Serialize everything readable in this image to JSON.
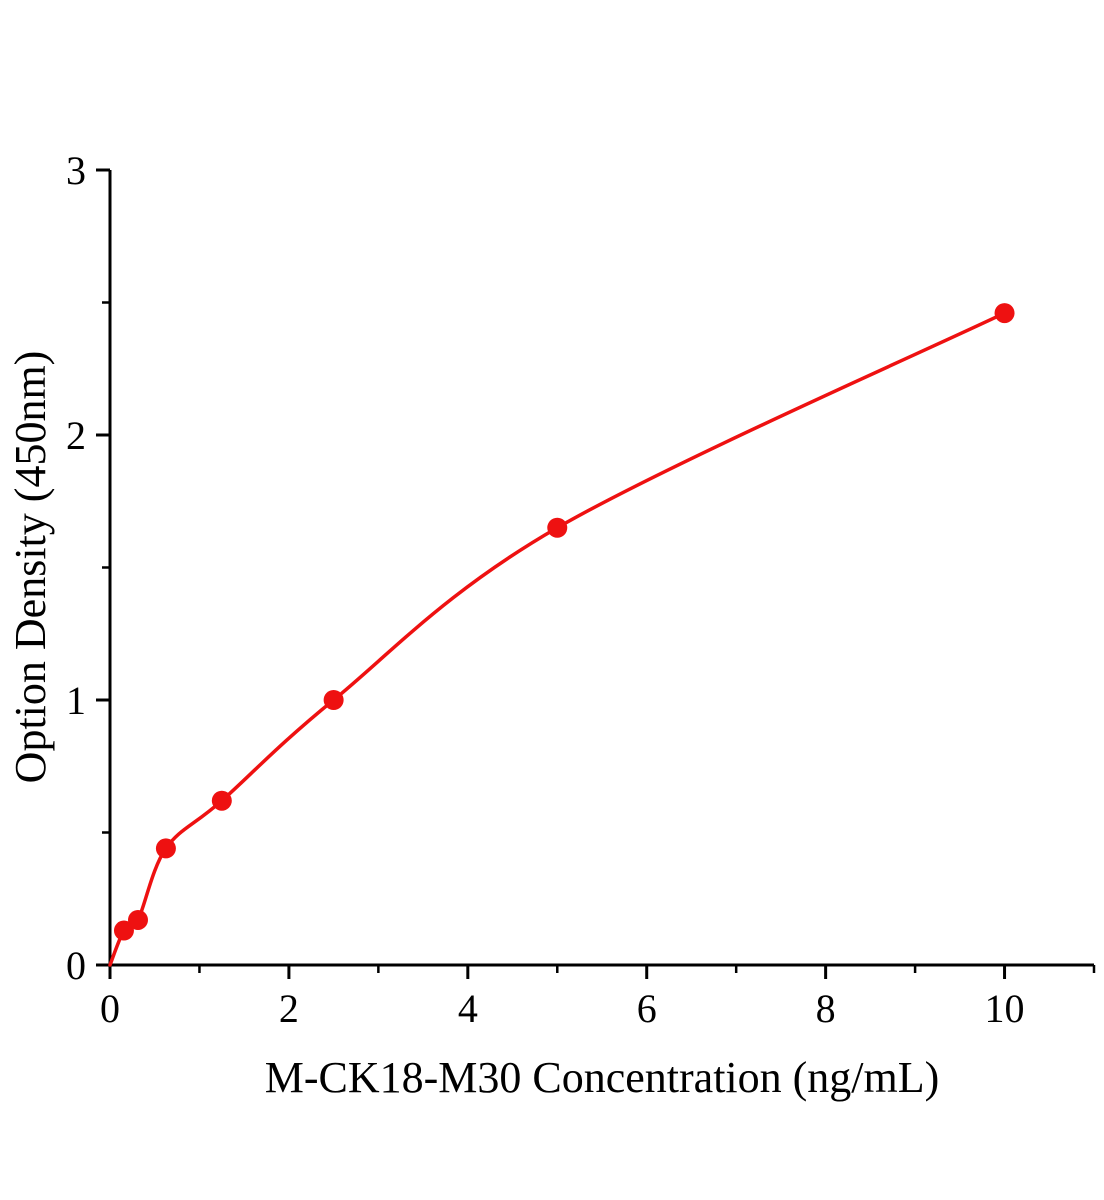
{
  "figure": {
    "background": "#ffffff"
  },
  "chart_data": {
    "type": "scatter",
    "title": "",
    "xlabel": "M-CK18-M30 Concentration (ng/mL)",
    "ylabel": "Option Density (450nm)",
    "x": [
      0.156,
      0.313,
      0.625,
      1.25,
      2.5,
      5,
      10
    ],
    "y": [
      0.13,
      0.17,
      0.44,
      0.62,
      1.0,
      1.65,
      2.46
    ],
    "curve_through_origin": true,
    "fit": "smooth curve through points",
    "xlim": [
      0,
      11
    ],
    "ylim": [
      0,
      3
    ],
    "x_ticks": [
      0,
      2,
      4,
      6,
      8,
      10
    ],
    "x_minor_ticks": [
      1,
      3,
      5,
      7,
      9,
      11
    ],
    "y_ticks": [
      0,
      1,
      2,
      3
    ],
    "y_minor_ticks": [
      0.5,
      1.5,
      2.5
    ],
    "grid": false,
    "legend": "none",
    "marker": "circle",
    "line_color": "#ee1111",
    "marker_color": "#ee1111",
    "axis_color": "#000000"
  }
}
